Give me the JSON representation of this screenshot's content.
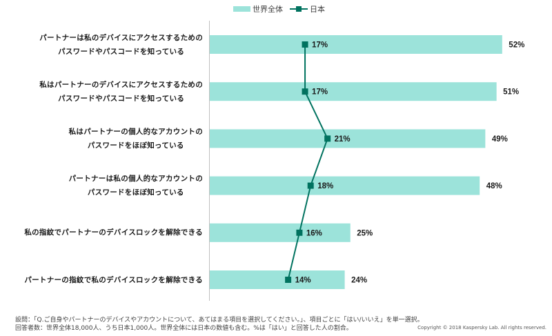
{
  "chart_data": {
    "type": "bar",
    "orientation": "horizontal",
    "categories": [
      [
        "パートナーは私のデバイスにアクセスするための",
        "パスワードやパスコードを知っている"
      ],
      [
        "私はパートナーのデバイスにアクセスするための",
        "パスワードやパスコードを知っている"
      ],
      [
        "私はパートナーの個人的なアカウントの",
        "パスワードをほぼ知っている"
      ],
      [
        "パートナーは私の個人的なアカウントの",
        "パスワードをほぼ知っている"
      ],
      [
        "私の指紋でパートナーのデバイスロックを解除できる"
      ],
      [
        "パートナーの指紋で私のデバイスロックを解除できる"
      ]
    ],
    "series": [
      {
        "name": "世界全体",
        "type": "bar",
        "color": "#9ce3da",
        "values": [
          52,
          51,
          49,
          48,
          25,
          24
        ],
        "labels": [
          "52%",
          "51%",
          "49%",
          "48%",
          "25%",
          "24%"
        ]
      },
      {
        "name": "日本",
        "type": "line",
        "color": "#00725f",
        "values": [
          17,
          17,
          21,
          18,
          16,
          14
        ],
        "labels": [
          "17%",
          "17%",
          "21%",
          "18%",
          "16%",
          "14%"
        ]
      }
    ],
    "xlim": [
      0,
      60
    ],
    "grid": false,
    "legend": "top-center"
  },
  "legend": {
    "world": "世界全体",
    "japan": "日本"
  },
  "footnotes": [
    "設問：「Q.ご自身やパートナーのデバイスやアカウントについて、あてはまる項目を選択してください。」、項目ごとに「はい/いいえ」を単一選択。",
    "回答者数：世界全体18,000人、うち日本1,000人。世界全体には日本の数値も含む。%は「はい」と回答した人の割合。"
  ],
  "copyright": "Copyright © 2018 Kaspersky Lab. All rights reserved."
}
